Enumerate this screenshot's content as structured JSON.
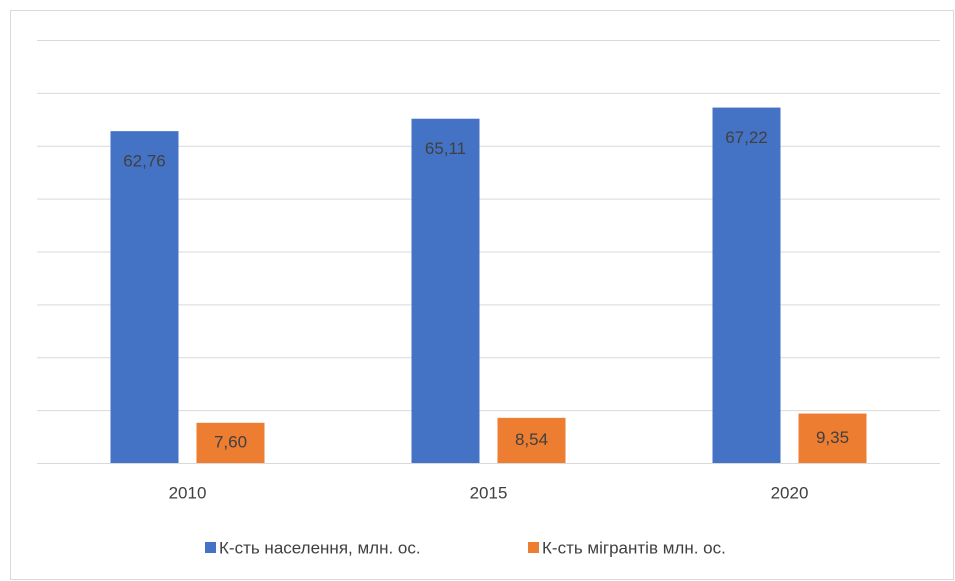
{
  "chart_data": {
    "type": "bar",
    "categories": [
      "2010",
      "2015",
      "2020"
    ],
    "series": [
      {
        "name": "К-сть населення, млн. ос.",
        "color": "#4472c4",
        "values": [
          62.76,
          65.11,
          67.22
        ],
        "value_labels": [
          "62,76",
          "65,11",
          "67,22"
        ]
      },
      {
        "name": "К-сть мігрантів млн. ос.",
        "color": "#ed7d31",
        "values": [
          7.6,
          8.54,
          9.35
        ],
        "value_labels": [
          "7,60",
          "8,54",
          "9,35"
        ]
      }
    ],
    "ylim": [
      0,
      80
    ],
    "yticks": [
      0,
      10,
      20,
      30,
      40,
      50,
      60,
      70,
      80
    ],
    "grid": true,
    "legend": "bottom"
  }
}
